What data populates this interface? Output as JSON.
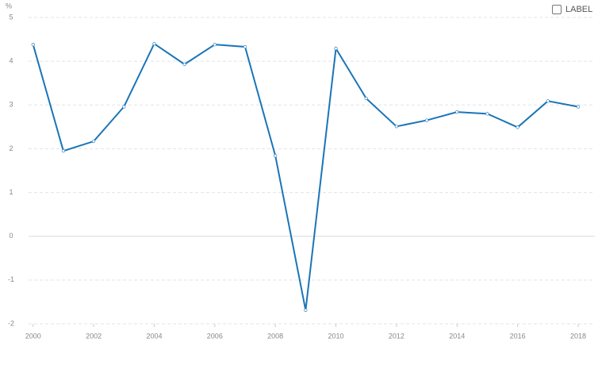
{
  "chart_data": {
    "type": "line",
    "y_unit": "%",
    "toggle_label": "LABEL",
    "x": [
      2000,
      2001,
      2002,
      2003,
      2004,
      2005,
      2006,
      2007,
      2008,
      2009,
      2010,
      2011,
      2012,
      2013,
      2014,
      2015,
      2016,
      2017,
      2018
    ],
    "values": [
      4.38,
      1.95,
      2.17,
      2.96,
      4.4,
      3.93,
      4.38,
      4.33,
      1.84,
      -1.69,
      4.29,
      3.15,
      2.51,
      2.65,
      2.84,
      2.8,
      2.49,
      3.09,
      2.96
    ],
    "color": "#1a75b7",
    "xlim": [
      1999.85,
      2018.55
    ],
    "xticks": [
      2000,
      2002,
      2004,
      2006,
      2008,
      2010,
      2012,
      2014,
      2016,
      2018
    ],
    "ylim": [
      -2,
      5
    ],
    "yticks": [
      -2,
      -1,
      0,
      1,
      2,
      3,
      4,
      5
    ],
    "grid": true
  }
}
